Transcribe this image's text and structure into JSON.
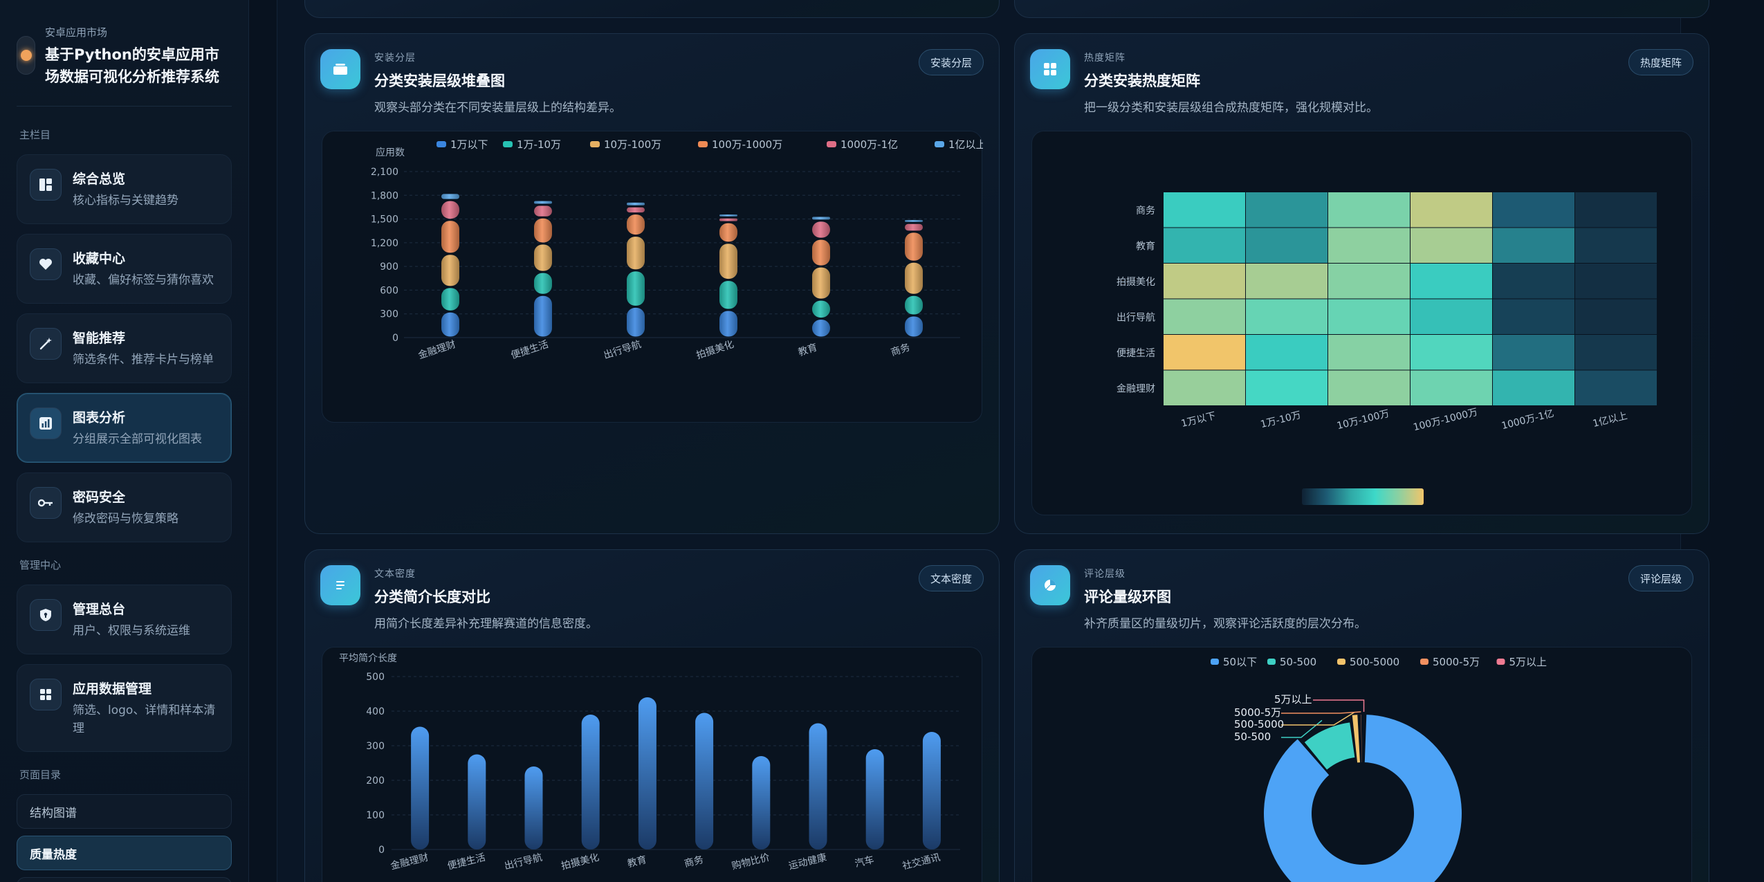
{
  "brand": {
    "subtitle": "安卓应用市场",
    "title": "基于Python的安卓应用市场数据可视化分析推荐系统"
  },
  "sidebar": {
    "section_main": "主栏目",
    "main_items": [
      {
        "title": "综合总览",
        "desc": "核心指标与关键趋势",
        "icon": "dashboard-icon"
      },
      {
        "title": "收藏中心",
        "desc": "收藏、偏好标签与猜你喜欢",
        "icon": "heart-icon"
      },
      {
        "title": "智能推荐",
        "desc": "筛选条件、推荐卡片与榜单",
        "icon": "magic-wand-icon"
      },
      {
        "title": "图表分析",
        "desc": "分组展示全部可视化图表",
        "icon": "bar-chart-icon",
        "active": true
      },
      {
        "title": "密码安全",
        "desc": "修改密码与恢复策略",
        "icon": "key-icon"
      }
    ],
    "section_admin": "管理中心",
    "admin_items": [
      {
        "title": "管理总台",
        "desc": "用户、权限与系统运维",
        "icon": "shield-icon"
      },
      {
        "title": "应用数据管理",
        "desc": "筛选、logo、详情和样本清理",
        "icon": "grid-icon"
      }
    ],
    "section_toc": "页面目录",
    "toc": [
      "结构图谱",
      "质量热度"
    ]
  },
  "cards": {
    "stack": {
      "eyebrow": "安装分层",
      "title": "分类安装层级堆叠图",
      "desc": "观察头部分类在不同安装量层级上的结构差异。",
      "tag": "安装分层"
    },
    "heat": {
      "eyebrow": "热度矩阵",
      "title": "分类安装热度矩阵",
      "desc": "把一级分类和安装层级组合成热度矩阵，强化规模对比。",
      "tag": "热度矩阵"
    },
    "length": {
      "eyebrow": "文本密度",
      "title": "分类简介长度对比",
      "desc": "用简介长度差异补充理解赛道的信息密度。",
      "tag": "文本密度"
    },
    "donut": {
      "eyebrow": "评论层级",
      "title": "评论量级环图",
      "desc": "补齐质量区的量级切片，观察评论活跃度的层次分布。",
      "tag": "评论层级"
    }
  },
  "colors": {
    "tiers": [
      "#3a86e0",
      "#27c2b3",
      "#e6b062",
      "#ef8a54",
      "#df6e86",
      "#5aa7e8"
    ],
    "donut": [
      "#4da3f6",
      "#3ed0c4",
      "#f2c36b",
      "#f29060",
      "#ef7b92"
    ],
    "bar": "#3b8ae6"
  },
  "chart_data": [
    {
      "type": "bar",
      "stacked": true,
      "ylabel": "应用数",
      "ylim": [
        0,
        2100
      ],
      "yticks": [
        "0",
        "300",
        "600",
        "900",
        "1,200",
        "1,500",
        "1,800",
        "2,100"
      ],
      "categories": [
        "金融理财",
        "便捷生活",
        "出行导航",
        "拍摄美化",
        "教育",
        "商务"
      ],
      "series": [
        {
          "name": "1万以下",
          "values": [
            330,
            540,
            390,
            350,
            240,
            280
          ]
        },
        {
          "name": "1万-10万",
          "values": [
            310,
            290,
            460,
            380,
            240,
            260
          ]
        },
        {
          "name": "10万-100万",
          "values": [
            420,
            360,
            440,
            470,
            420,
            420
          ]
        },
        {
          "name": "100万-1000万",
          "values": [
            430,
            330,
            280,
            260,
            350,
            380
          ]
        },
        {
          "name": "1000万-1亿",
          "values": [
            250,
            160,
            90,
            60,
            230,
            110
          ]
        },
        {
          "name": "1亿以上",
          "values": [
            90,
            60,
            60,
            50,
            60,
            50
          ]
        }
      ],
      "legend": "top"
    },
    {
      "type": "heatmap",
      "rows": [
        "商务",
        "教育",
        "拍摄美化",
        "出行导航",
        "便捷生活",
        "金融理财"
      ],
      "cols": [
        "1万以下",
        "1万-10万",
        "10万-100万",
        "100万-1000万",
        "1000万-1亿",
        "1亿以上"
      ],
      "values": [
        [
          0.55,
          0.35,
          0.75,
          0.9,
          0.2,
          0.05
        ],
        [
          0.45,
          0.35,
          0.8,
          0.85,
          0.3,
          0.08
        ],
        [
          0.9,
          0.85,
          0.78,
          0.55,
          0.1,
          0.05
        ],
        [
          0.8,
          0.7,
          0.7,
          0.5,
          0.12,
          0.05
        ],
        [
          1.0,
          0.55,
          0.78,
          0.65,
          0.25,
          0.08
        ],
        [
          0.82,
          0.62,
          0.8,
          0.72,
          0.45,
          0.15
        ]
      ]
    },
    {
      "type": "bar",
      "ylabel": "平均简介长度",
      "ylim": [
        0,
        500
      ],
      "yticks": [
        "0",
        "100",
        "200",
        "300",
        "400",
        "500"
      ],
      "categories": [
        "金融理财",
        "便捷生活",
        "出行导航",
        "拍摄美化",
        "教育",
        "商务",
        "购物比价",
        "运动健康",
        "汽车",
        "社交通讯"
      ],
      "values": [
        355,
        275,
        240,
        390,
        440,
        395,
        270,
        365,
        290,
        340
      ]
    },
    {
      "type": "pie",
      "donut": true,
      "legend": "top",
      "labels": [
        "50以下",
        "50-500",
        "500-5000",
        "5000-5万",
        "5万以上"
      ],
      "values": [
        88.5,
        9.2,
        1.4,
        0.6,
        0.3
      ]
    }
  ]
}
